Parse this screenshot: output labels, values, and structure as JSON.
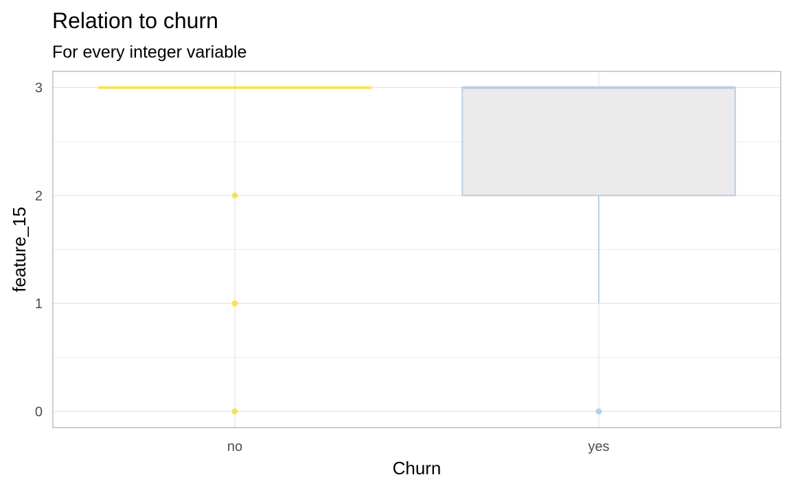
{
  "chart_data": {
    "type": "boxplot",
    "title": "Relation to churn",
    "subtitle": "For every integer variable",
    "xlabel": "Churn",
    "ylabel": "feature_15",
    "categories": [
      "no",
      "yes"
    ],
    "ylim": [
      -0.15,
      3.15
    ],
    "yticks": [
      0,
      1,
      2,
      3
    ],
    "grid": true,
    "legend": "none",
    "boxes": [
      {
        "category": "no",
        "min": 3,
        "q1": 3,
        "median": 3,
        "q3": 3,
        "max": 3,
        "outliers": [
          2,
          1,
          0
        ],
        "color": "#fbe15a",
        "fill": "#ebebeb"
      },
      {
        "category": "yes",
        "min": 1,
        "q1": 2,
        "median": 3,
        "q3": 3,
        "max": 3,
        "outliers": [
          0
        ],
        "color": "#b9cfe6",
        "fill": "#ebebeb"
      }
    ]
  }
}
